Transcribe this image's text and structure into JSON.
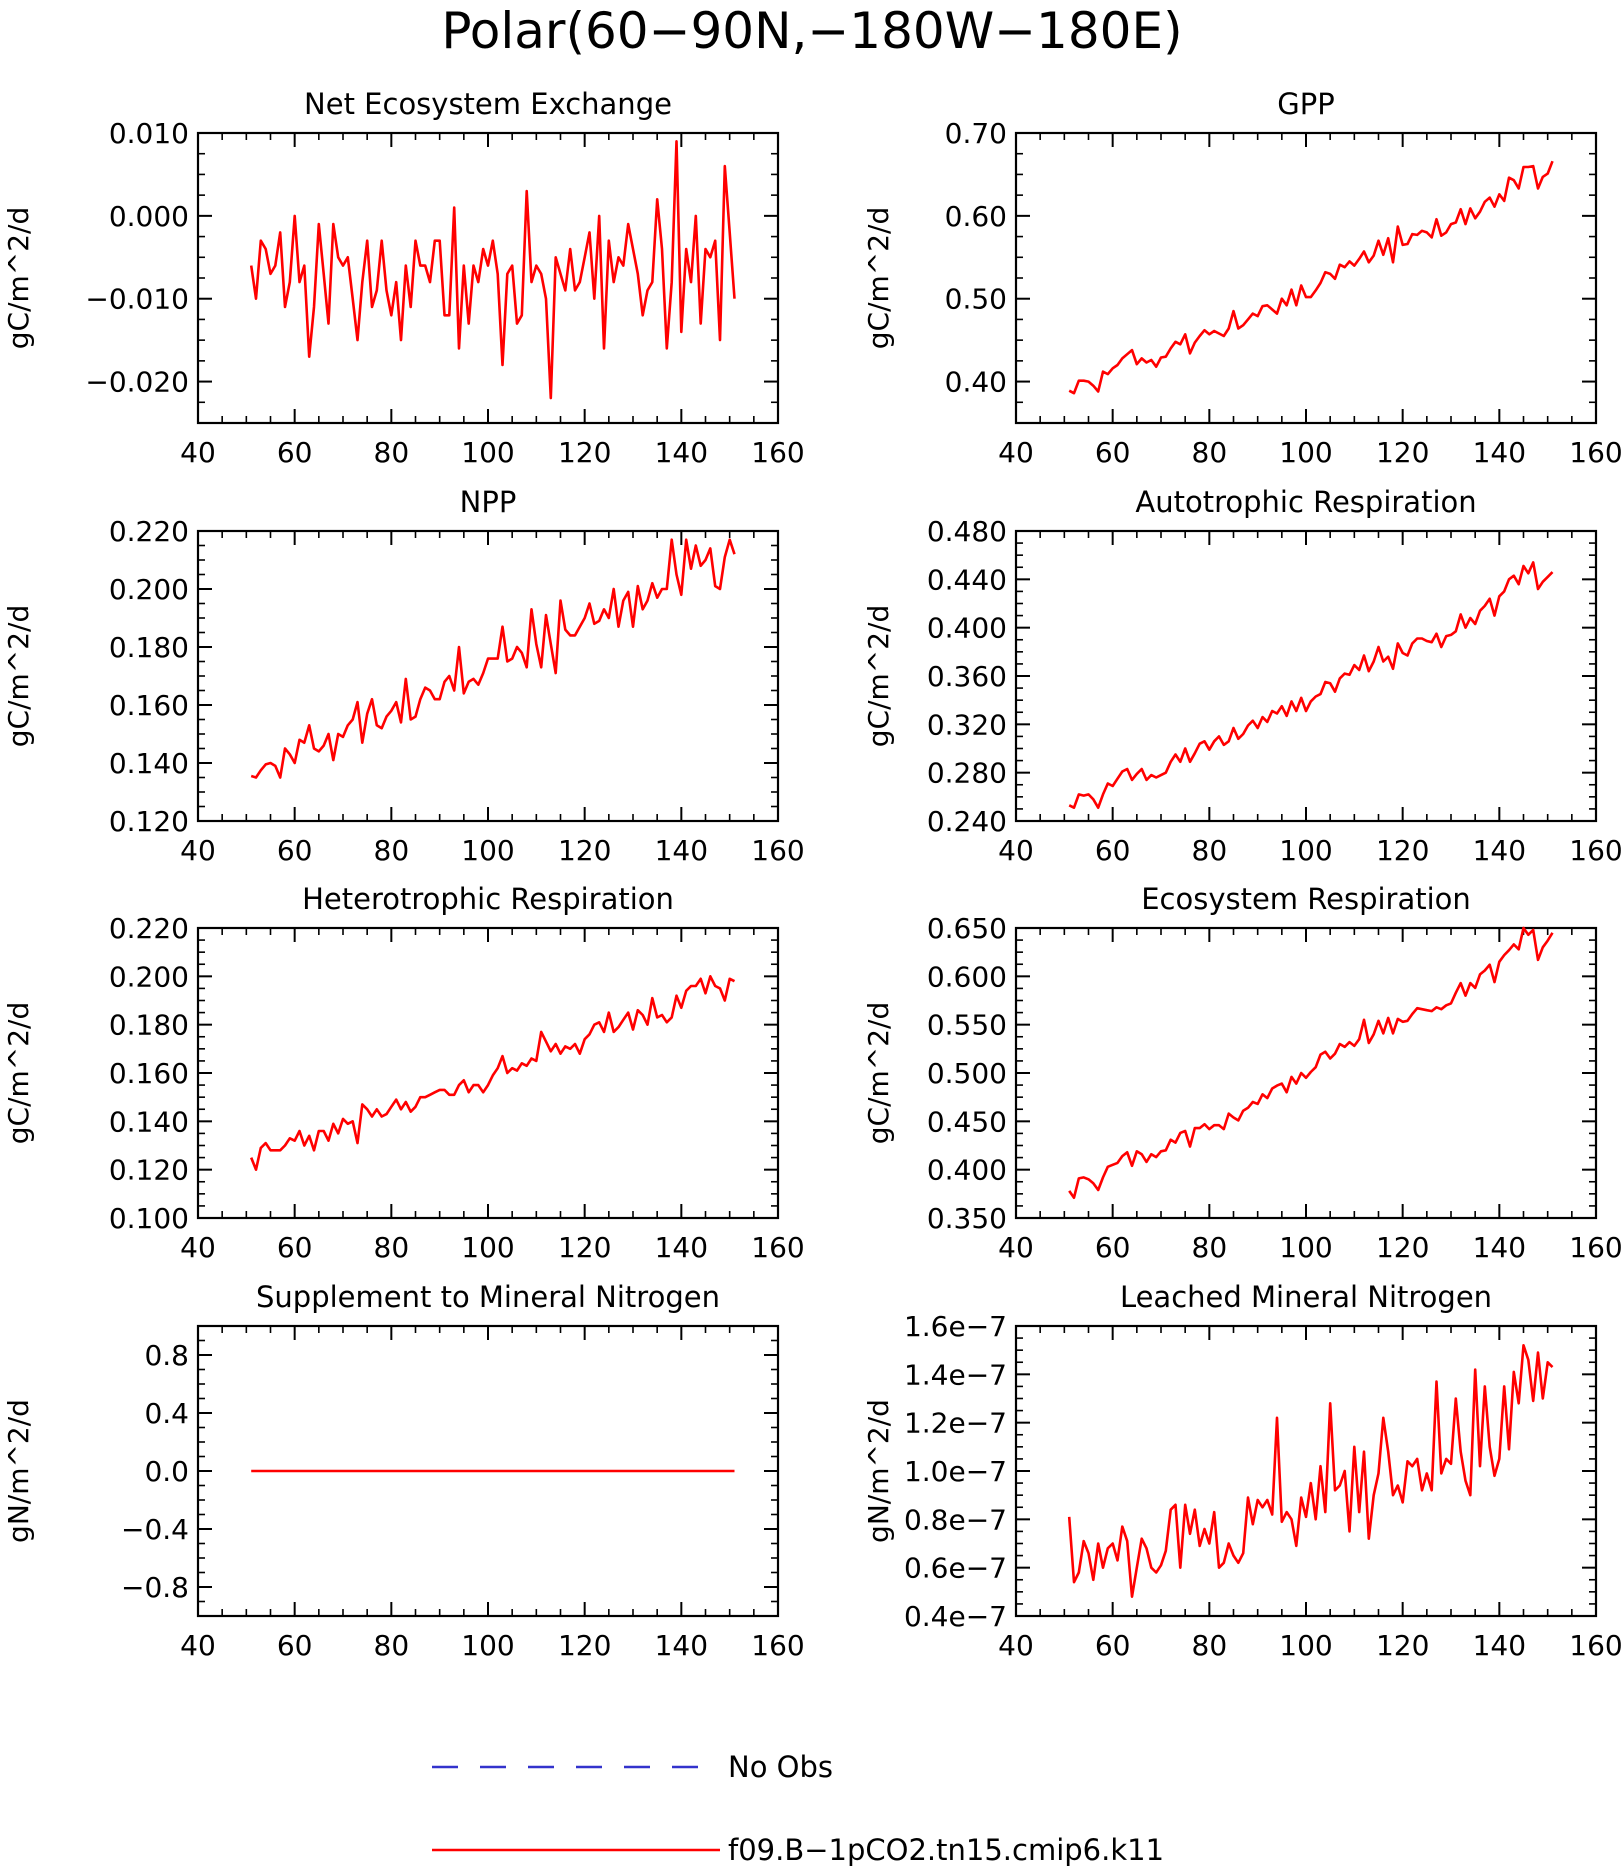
{
  "main_title": "Polar(60−90N,−180W−180E)",
  "legend": {
    "entries": [
      {
        "label": "No Obs",
        "color": "#3333cc",
        "style": "dashed"
      },
      {
        "label": "f09.B−1pCO2.tn15.cmip6.k11",
        "color": "#ff0000",
        "style": "solid"
      }
    ]
  },
  "colors": {
    "series": "#ff0000",
    "axes": "#000000",
    "obs": "#3333cc"
  },
  "chart_data": [
    {
      "type": "line",
      "title": "Net Ecosystem Exchange",
      "ylabel": "gC/m^2/d",
      "xlim": [
        40,
        160
      ],
      "ylim": [
        -0.025,
        0.01
      ],
      "xticks": [
        40,
        60,
        80,
        100,
        120,
        140,
        160
      ],
      "xtick_labels": [
        "40",
        "60",
        "80",
        "100",
        "120",
        "140",
        "160"
      ],
      "yticks": [
        0.01,
        0.0,
        -0.01,
        -0.02
      ],
      "ytick_labels": [
        "0.010",
        "0.000",
        "−0.010",
        "−0.020"
      ],
      "x_start": 51,
      "values": [
        -0.006,
        -0.01,
        -0.003,
        -0.004,
        -0.007,
        -0.006,
        -0.002,
        -0.011,
        -0.008,
        0.0,
        -0.008,
        -0.006,
        -0.017,
        -0.011,
        -0.001,
        -0.007,
        -0.013,
        -0.001,
        -0.005,
        -0.006,
        -0.005,
        -0.01,
        -0.015,
        -0.008,
        -0.003,
        -0.011,
        -0.009,
        -0.003,
        -0.009,
        -0.012,
        -0.008,
        -0.015,
        -0.006,
        -0.011,
        -0.003,
        -0.006,
        -0.006,
        -0.008,
        -0.003,
        -0.003,
        -0.012,
        -0.012,
        0.001,
        -0.016,
        -0.006,
        -0.013,
        -0.006,
        -0.008,
        -0.004,
        -0.006,
        -0.003,
        -0.007,
        -0.018,
        -0.007,
        -0.006,
        -0.013,
        -0.012,
        0.003,
        -0.008,
        -0.006,
        -0.007,
        -0.01,
        -0.022,
        -0.005,
        -0.007,
        -0.009,
        -0.004,
        -0.009,
        -0.008,
        -0.005,
        -0.002,
        -0.01,
        0.0,
        -0.016,
        -0.003,
        -0.008,
        -0.005,
        -0.006,
        -0.001,
        -0.004,
        -0.007,
        -0.012,
        -0.009,
        -0.008,
        0.002,
        -0.004,
        -0.016,
        -0.008,
        0.009,
        -0.014,
        -0.004,
        -0.008,
        0.0,
        -0.013,
        -0.004,
        -0.005,
        -0.003,
        -0.015,
        0.006,
        -0.002,
        -0.01
      ]
    },
    {
      "type": "line",
      "title": "GPP",
      "ylabel": "gC/m^2/d",
      "xlim": [
        40,
        160
      ],
      "ylim": [
        0.35,
        0.7
      ],
      "xticks": [
        40,
        60,
        80,
        100,
        120,
        140,
        160
      ],
      "xtick_labels": [
        "40",
        "60",
        "80",
        "100",
        "120",
        "140",
        "160"
      ],
      "yticks": [
        0.7,
        0.6,
        0.5,
        0.4
      ],
      "ytick_labels": [
        "0.70",
        "0.60",
        "0.50",
        "0.40"
      ],
      "x_start": 51,
      "values": [
        0.389,
        0.386,
        0.401,
        0.401,
        0.4,
        0.395,
        0.388,
        0.412,
        0.409,
        0.416,
        0.42,
        0.428,
        0.433,
        0.438,
        0.421,
        0.428,
        0.423,
        0.426,
        0.418,
        0.429,
        0.43,
        0.44,
        0.448,
        0.445,
        0.457,
        0.434,
        0.447,
        0.455,
        0.462,
        0.457,
        0.461,
        0.458,
        0.455,
        0.464,
        0.485,
        0.464,
        0.468,
        0.475,
        0.482,
        0.479,
        0.491,
        0.492,
        0.487,
        0.482,
        0.5,
        0.492,
        0.511,
        0.492,
        0.516,
        0.502,
        0.502,
        0.51,
        0.519,
        0.532,
        0.53,
        0.524,
        0.541,
        0.538,
        0.545,
        0.54,
        0.548,
        0.557,
        0.544,
        0.552,
        0.57,
        0.553,
        0.573,
        0.544,
        0.587,
        0.565,
        0.566,
        0.578,
        0.577,
        0.582,
        0.58,
        0.574,
        0.596,
        0.576,
        0.58,
        0.59,
        0.592,
        0.608,
        0.59,
        0.609,
        0.597,
        0.605,
        0.617,
        0.622,
        0.611,
        0.626,
        0.618,
        0.646,
        0.643,
        0.633,
        0.659,
        0.659,
        0.66,
        0.633,
        0.647,
        0.651,
        0.666
      ]
    },
    {
      "type": "line",
      "title": "NPP",
      "ylabel": "gC/m^2/d",
      "xlim": [
        40,
        160
      ],
      "ylim": [
        0.12,
        0.22
      ],
      "xticks": [
        40,
        60,
        80,
        100,
        120,
        140,
        160
      ],
      "xtick_labels": [
        "40",
        "60",
        "80",
        "100",
        "120",
        "140",
        "160"
      ],
      "yticks": [
        0.22,
        0.2,
        0.18,
        0.16,
        0.14,
        0.12
      ],
      "ytick_labels": [
        "0.220",
        "0.200",
        "0.180",
        "0.160",
        "0.140",
        "0.120"
      ],
      "x_start": 51,
      "values": [
        0.1355,
        0.135,
        0.1375,
        0.1395,
        0.14,
        0.139,
        0.135,
        0.145,
        0.143,
        0.14,
        0.148,
        0.147,
        0.153,
        0.145,
        0.144,
        0.146,
        0.15,
        0.141,
        0.15,
        0.149,
        0.153,
        0.155,
        0.161,
        0.147,
        0.157,
        0.162,
        0.153,
        0.152,
        0.156,
        0.158,
        0.161,
        0.154,
        0.169,
        0.155,
        0.156,
        0.162,
        0.166,
        0.165,
        0.162,
        0.162,
        0.168,
        0.17,
        0.165,
        0.18,
        0.164,
        0.168,
        0.169,
        0.167,
        0.171,
        0.176,
        0.176,
        0.176,
        0.187,
        0.175,
        0.176,
        0.18,
        0.178,
        0.173,
        0.193,
        0.181,
        0.173,
        0.191,
        0.181,
        0.171,
        0.196,
        0.186,
        0.184,
        0.184,
        0.187,
        0.19,
        0.195,
        0.188,
        0.189,
        0.193,
        0.19,
        0.2,
        0.187,
        0.196,
        0.199,
        0.187,
        0.201,
        0.193,
        0.196,
        0.202,
        0.197,
        0.2,
        0.2,
        0.217,
        0.205,
        0.198,
        0.217,
        0.207,
        0.215,
        0.208,
        0.21,
        0.214,
        0.201,
        0.2,
        0.211,
        0.217,
        0.212
      ]
    },
    {
      "type": "line",
      "title": "Autotrophic Respiration",
      "ylabel": "gC/m^2/d",
      "xlim": [
        40,
        160
      ],
      "ylim": [
        0.24,
        0.48
      ],
      "xticks": [
        40,
        60,
        80,
        100,
        120,
        140,
        160
      ],
      "xtick_labels": [
        "40",
        "60",
        "80",
        "100",
        "120",
        "140",
        "160"
      ],
      "yticks": [
        0.48,
        0.44,
        0.4,
        0.36,
        0.32,
        0.28,
        0.24
      ],
      "ytick_labels": [
        "0.480",
        "0.440",
        "0.400",
        "0.360",
        "0.320",
        "0.280",
        "0.240"
      ],
      "x_start": 51,
      "values": [
        0.253,
        0.251,
        0.262,
        0.261,
        0.262,
        0.258,
        0.251,
        0.262,
        0.271,
        0.269,
        0.275,
        0.281,
        0.283,
        0.274,
        0.279,
        0.283,
        0.274,
        0.278,
        0.276,
        0.278,
        0.28,
        0.289,
        0.295,
        0.289,
        0.3,
        0.289,
        0.296,
        0.304,
        0.306,
        0.299,
        0.306,
        0.31,
        0.303,
        0.306,
        0.317,
        0.308,
        0.312,
        0.319,
        0.323,
        0.317,
        0.326,
        0.322,
        0.331,
        0.329,
        0.335,
        0.327,
        0.339,
        0.331,
        0.342,
        0.331,
        0.339,
        0.343,
        0.345,
        0.355,
        0.354,
        0.347,
        0.358,
        0.362,
        0.361,
        0.369,
        0.365,
        0.377,
        0.364,
        0.372,
        0.384,
        0.372,
        0.376,
        0.366,
        0.387,
        0.379,
        0.377,
        0.387,
        0.391,
        0.391,
        0.389,
        0.388,
        0.395,
        0.384,
        0.393,
        0.394,
        0.397,
        0.411,
        0.4,
        0.408,
        0.403,
        0.414,
        0.418,
        0.424,
        0.41,
        0.426,
        0.43,
        0.44,
        0.443,
        0.436,
        0.451,
        0.445,
        0.454,
        0.432,
        0.438,
        0.442,
        0.446
      ]
    },
    {
      "type": "line",
      "title": "Heterotrophic Respiration",
      "ylabel": "gC/m^2/d",
      "xlim": [
        40,
        160
      ],
      "ylim": [
        0.1,
        0.22
      ],
      "xticks": [
        40,
        60,
        80,
        100,
        120,
        140,
        160
      ],
      "xtick_labels": [
        "40",
        "60",
        "80",
        "100",
        "120",
        "140",
        "160"
      ],
      "yticks": [
        0.22,
        0.2,
        0.18,
        0.16,
        0.14,
        0.12,
        0.1
      ],
      "ytick_labels": [
        "0.220",
        "0.200",
        "0.180",
        "0.160",
        "0.140",
        "0.120",
        "0.100"
      ],
      "x_start": 51,
      "values": [
        0.125,
        0.12,
        0.129,
        0.131,
        0.128,
        0.128,
        0.128,
        0.13,
        0.133,
        0.132,
        0.136,
        0.13,
        0.134,
        0.128,
        0.136,
        0.136,
        0.132,
        0.139,
        0.135,
        0.141,
        0.139,
        0.14,
        0.131,
        0.147,
        0.145,
        0.142,
        0.145,
        0.142,
        0.143,
        0.146,
        0.149,
        0.145,
        0.148,
        0.144,
        0.146,
        0.15,
        0.15,
        0.151,
        0.152,
        0.153,
        0.153,
        0.151,
        0.151,
        0.155,
        0.157,
        0.152,
        0.155,
        0.155,
        0.152,
        0.155,
        0.159,
        0.162,
        0.167,
        0.16,
        0.162,
        0.161,
        0.164,
        0.163,
        0.166,
        0.165,
        0.177,
        0.173,
        0.169,
        0.172,
        0.168,
        0.171,
        0.17,
        0.172,
        0.168,
        0.174,
        0.176,
        0.18,
        0.181,
        0.177,
        0.185,
        0.177,
        0.179,
        0.182,
        0.185,
        0.178,
        0.186,
        0.184,
        0.18,
        0.191,
        0.183,
        0.184,
        0.181,
        0.183,
        0.192,
        0.187,
        0.194,
        0.196,
        0.196,
        0.199,
        0.193,
        0.2,
        0.196,
        0.195,
        0.19,
        0.199,
        0.198
      ]
    },
    {
      "type": "line",
      "title": "Ecosystem Respiration",
      "ylabel": "gC/m^2/d",
      "xlim": [
        40,
        160
      ],
      "ylim": [
        0.35,
        0.65
      ],
      "xticks": [
        40,
        60,
        80,
        100,
        120,
        140,
        160
      ],
      "xtick_labels": [
        "40",
        "60",
        "80",
        "100",
        "120",
        "140",
        "160"
      ],
      "yticks": [
        0.65,
        0.6,
        0.55,
        0.5,
        0.45,
        0.4,
        0.35
      ],
      "ytick_labels": [
        "0.650",
        "0.600",
        "0.550",
        "0.500",
        "0.450",
        "0.400",
        "0.350"
      ],
      "x_start": 51,
      "values": [
        0.378,
        0.371,
        0.391,
        0.392,
        0.39,
        0.386,
        0.379,
        0.392,
        0.403,
        0.405,
        0.407,
        0.414,
        0.418,
        0.404,
        0.419,
        0.416,
        0.408,
        0.416,
        0.413,
        0.419,
        0.42,
        0.431,
        0.428,
        0.438,
        0.44,
        0.424,
        0.443,
        0.443,
        0.447,
        0.442,
        0.446,
        0.446,
        0.442,
        0.458,
        0.454,
        0.451,
        0.461,
        0.464,
        0.47,
        0.468,
        0.478,
        0.474,
        0.484,
        0.487,
        0.489,
        0.48,
        0.496,
        0.489,
        0.5,
        0.495,
        0.501,
        0.506,
        0.519,
        0.522,
        0.515,
        0.52,
        0.53,
        0.527,
        0.532,
        0.528,
        0.535,
        0.555,
        0.531,
        0.54,
        0.554,
        0.541,
        0.557,
        0.541,
        0.556,
        0.553,
        0.554,
        0.561,
        0.567,
        0.566,
        0.565,
        0.564,
        0.568,
        0.566,
        0.57,
        0.572,
        0.583,
        0.593,
        0.58,
        0.593,
        0.588,
        0.602,
        0.606,
        0.612,
        0.594,
        0.615,
        0.622,
        0.627,
        0.633,
        0.628,
        0.65,
        0.643,
        0.648,
        0.617,
        0.63,
        0.637,
        0.645
      ]
    },
    {
      "type": "line",
      "title": "Supplement to Mineral Nitrogen",
      "ylabel": "gN/m^2/d",
      "xlim": [
        40,
        160
      ],
      "ylim": [
        -1.0,
        1.0
      ],
      "xticks": [
        40,
        60,
        80,
        100,
        120,
        140,
        160
      ],
      "xtick_labels": [
        "40",
        "60",
        "80",
        "100",
        "120",
        "140",
        "160"
      ],
      "yticks": [
        0.8,
        0.4,
        0.0,
        -0.4,
        -0.8
      ],
      "ytick_labels": [
        "0.8",
        "0.4",
        "0.0",
        "−0.4",
        "−0.8"
      ],
      "x_start": 51,
      "values": [
        0,
        0,
        0,
        0,
        0,
        0,
        0,
        0,
        0,
        0,
        0,
        0,
        0,
        0,
        0,
        0,
        0,
        0,
        0,
        0,
        0,
        0,
        0,
        0,
        0,
        0,
        0,
        0,
        0,
        0,
        0,
        0,
        0,
        0,
        0,
        0,
        0,
        0,
        0,
        0,
        0,
        0,
        0,
        0,
        0,
        0,
        0,
        0,
        0,
        0,
        0,
        0,
        0,
        0,
        0,
        0,
        0,
        0,
        0,
        0,
        0,
        0,
        0,
        0,
        0,
        0,
        0,
        0,
        0,
        0,
        0,
        0,
        0,
        0,
        0,
        0,
        0,
        0,
        0,
        0,
        0,
        0,
        0,
        0,
        0,
        0,
        0,
        0,
        0,
        0,
        0,
        0,
        0,
        0,
        0,
        0,
        0,
        0,
        0,
        0,
        0
      ]
    },
    {
      "type": "line",
      "title": "Leached Mineral Nitrogen",
      "ylabel": "gN/m^2/d",
      "xlim": [
        40,
        160
      ],
      "ylim": [
        4e-08,
        1.6e-07
      ],
      "xticks": [
        40,
        60,
        80,
        100,
        120,
        140,
        160
      ],
      "xtick_labels": [
        "40",
        "60",
        "80",
        "100",
        "120",
        "140",
        "160"
      ],
      "yticks": [
        1.6e-07,
        1.4e-07,
        1.2e-07,
        1e-07,
        8e-08,
        6e-08,
        4e-08
      ],
      "ytick_labels": [
        "1.6e−7",
        "1.4e−7",
        "1.2e−7",
        "1.0e−7",
        "0.8e−7",
        "0.6e−7",
        "0.4e−7"
      ],
      "x_start": 51,
      "values": [
        8.1e-08,
        5.4e-08,
        5.8e-08,
        7.1e-08,
        6.6e-08,
        5.5e-08,
        7e-08,
        6e-08,
        6.8e-08,
        7e-08,
        6.3e-08,
        7.7e-08,
        7.1e-08,
        4.8e-08,
        6e-08,
        7.2e-08,
        6.8e-08,
        6e-08,
        5.8e-08,
        6.1e-08,
        6.7e-08,
        8.4e-08,
        8.6e-08,
        6e-08,
        8.6e-08,
        7.4e-08,
        8.4e-08,
        6.9e-08,
        7.6e-08,
        7e-08,
        8.3e-08,
        6e-08,
        6.2e-08,
        7e-08,
        6.5e-08,
        6.2e-08,
        6.6e-08,
        8.9e-08,
        7.8e-08,
        8.8e-08,
        8.5e-08,
        8.8e-08,
        8.2e-08,
        1.22e-07,
        7.9e-08,
        8.3e-08,
        8e-08,
        6.9e-08,
        8.9e-08,
        8.1e-08,
        9.5e-08,
        8e-08,
        1.02e-07,
        8.3e-08,
        1.28e-07,
        9.2e-08,
        9.4e-08,
        1e-07,
        7.5e-08,
        1.1e-07,
        8.3e-08,
        1.08e-07,
        7.2e-08,
        9e-08,
        9.9e-08,
        1.22e-07,
        1.08e-07,
        9e-08,
        9.4e-08,
        8.7e-08,
        1.04e-07,
        1.02e-07,
        1.05e-07,
        9.2e-08,
        9.9e-08,
        9.2e-08,
        1.37e-07,
        9.9e-08,
        1.05e-07,
        1.03e-07,
        1.3e-07,
        1.08e-07,
        9.6e-08,
        9e-08,
        1.42e-07,
        1.02e-07,
        1.35e-07,
        1.1e-07,
        9.8e-08,
        1.05e-07,
        1.35e-07,
        1.09e-07,
        1.41e-07,
        1.28e-07,
        1.52e-07,
        1.46e-07,
        1.29e-07,
        1.49e-07,
        1.3e-07,
        1.45e-07,
        1.43e-07
      ]
    }
  ]
}
